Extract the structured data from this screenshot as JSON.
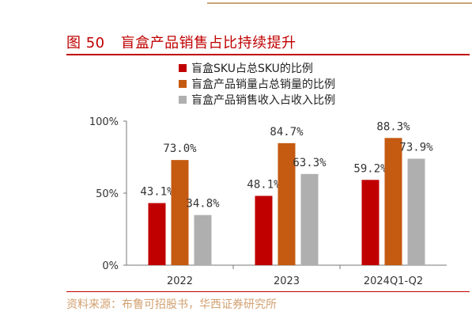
{
  "figure": {
    "number": "图 50",
    "title": "盲盒产品销售占比持续提升"
  },
  "source": "资料来源：布鲁可招股书，华西证券研究所",
  "colors": {
    "title": "#c00000",
    "series": [
      "#c00000",
      "#c55a11",
      "#afafaf"
    ]
  },
  "chart_data": {
    "type": "bar",
    "categories": [
      "2022",
      "2023",
      "2024Q1-Q2"
    ],
    "series": [
      {
        "name": "盲盒SKU占总SKU的比例",
        "values": [
          43.1,
          48.1,
          59.2
        ],
        "labels": [
          "43.1%",
          "48.1%",
          "59.2%"
        ]
      },
      {
        "name": "盲盒产品销量占总销量的比例",
        "values": [
          73.0,
          84.7,
          88.3
        ],
        "labels": [
          "73.0%",
          "84.7%",
          "88.3%"
        ]
      },
      {
        "name": "盲盒产品销售收入占收入比例",
        "values": [
          34.8,
          63.3,
          73.9
        ],
        "labels": [
          "34.8%",
          "63.3%",
          "73.9%"
        ]
      }
    ],
    "yticks": [
      "0%",
      "50%",
      "100%"
    ],
    "ytick_values": [
      0,
      50,
      100
    ],
    "ylim": [
      0,
      100
    ],
    "grid": false,
    "legend_position": "top"
  }
}
